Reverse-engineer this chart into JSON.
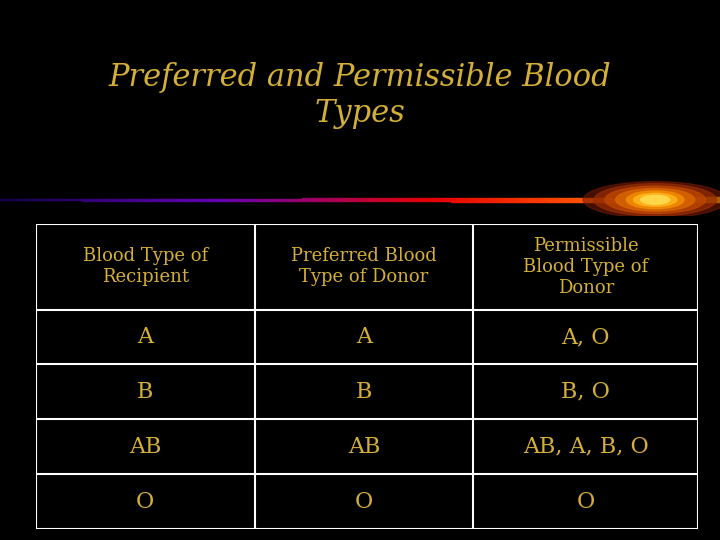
{
  "title": "Preferred and Permissible Blood\nTypes",
  "title_color": "#D4AF37",
  "background_color": "#000000",
  "text_color": "#D4AF37",
  "header_row": [
    "Blood Type of\nRecipient",
    "Preferred Blood\nType of Donor",
    "Permissible\nBlood Type of\nDonor"
  ],
  "data_rows": [
    [
      "A",
      "A",
      "A, O"
    ],
    [
      "B",
      "B",
      "B, O"
    ],
    [
      "AB",
      "AB",
      "AB, A, B, O"
    ],
    [
      "O",
      "O",
      "O"
    ]
  ],
  "header_fontsize": 13,
  "data_fontsize": 16
}
